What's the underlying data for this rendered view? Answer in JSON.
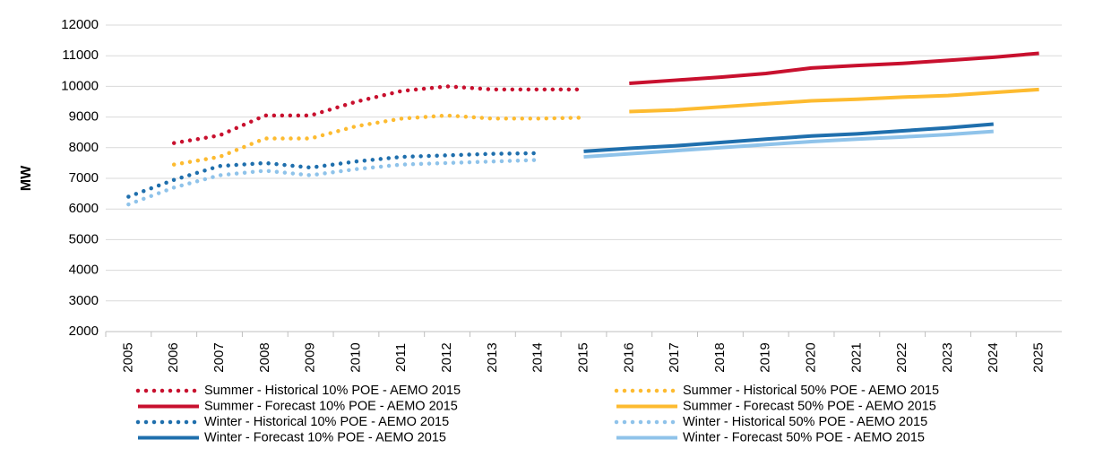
{
  "chart_data": {
    "type": "line",
    "y_label": "MW",
    "categories": [
      "2005",
      "2006",
      "2007",
      "2008",
      "2009",
      "2010",
      "2011",
      "2012",
      "2013",
      "2014",
      "2015",
      "2016",
      "2017",
      "2018",
      "2019",
      "2020",
      "2021",
      "2022",
      "2023",
      "2024",
      "2025"
    ],
    "ylim": [
      2000,
      12000
    ],
    "yticks": [
      2000,
      3000,
      4000,
      5000,
      6000,
      7000,
      8000,
      9000,
      10000,
      11000,
      12000
    ],
    "grid": true,
    "legend": "bottom",
    "series": [
      {
        "name": "Summer - Historical 10% POE - AEMO 2015",
        "color": "#c8102e",
        "style": "dotted",
        "values": [
          null,
          8150,
          8400,
          9050,
          9050,
          9500,
          9850,
          10000,
          9900,
          9900,
          9900,
          null,
          null,
          null,
          null,
          null,
          null,
          null,
          null,
          null,
          null
        ]
      },
      {
        "name": "Summer - Historical 50% POE - AEMO 2015",
        "color": "#fdbb30",
        "style": "dotted",
        "values": [
          null,
          7450,
          7700,
          8300,
          8300,
          8700,
          8950,
          9050,
          8950,
          8950,
          8980,
          null,
          null,
          null,
          null,
          null,
          null,
          null,
          null,
          null,
          null
        ]
      },
      {
        "name": "Summer - Forecast 10% POE - AEMO 2015",
        "color": "#c8102e",
        "style": "solid",
        "values": [
          null,
          null,
          null,
          null,
          null,
          null,
          null,
          null,
          null,
          null,
          null,
          10100,
          10200,
          10300,
          10420,
          10600,
          10680,
          10750,
          10850,
          10950,
          11080
        ]
      },
      {
        "name": "Summer - Forecast 50% POE - AEMO 2015",
        "color": "#fdbb30",
        "style": "solid",
        "values": [
          null,
          null,
          null,
          null,
          null,
          null,
          null,
          null,
          null,
          null,
          null,
          9180,
          9230,
          9330,
          9430,
          9530,
          9580,
          9650,
          9700,
          9800,
          9900
        ]
      },
      {
        "name": "Winter - Historical 10% POE - AEMO 2015",
        "color": "#1f6fad",
        "style": "dotted",
        "values": [
          6400,
          6950,
          7400,
          7500,
          7350,
          7550,
          7700,
          7750,
          7800,
          7820,
          null,
          null,
          null,
          null,
          null,
          null,
          null,
          null,
          null,
          null,
          null
        ]
      },
      {
        "name": "Winter - Historical 50% POE - AEMO 2015",
        "color": "#8fc3ea",
        "style": "dotted",
        "values": [
          6150,
          6700,
          7100,
          7250,
          7100,
          7300,
          7450,
          7500,
          7550,
          7600,
          null,
          null,
          null,
          null,
          null,
          null,
          null,
          null,
          null,
          null,
          null
        ]
      },
      {
        "name": "Winter - Forecast 10% POE - AEMO 2015",
        "color": "#1f6fad",
        "style": "solid",
        "values": [
          null,
          null,
          null,
          null,
          null,
          null,
          null,
          null,
          null,
          null,
          7880,
          7980,
          8060,
          8170,
          8280,
          8380,
          8450,
          8550,
          8650,
          8770,
          null
        ]
      },
      {
        "name": "Winter - Forecast 50% POE - AEMO 2015",
        "color": "#8fc3ea",
        "style": "solid",
        "values": [
          null,
          null,
          null,
          null,
          null,
          null,
          null,
          null,
          null,
          null,
          7700,
          7800,
          7900,
          8000,
          8100,
          8200,
          8280,
          8350,
          8430,
          8530,
          null
        ]
      }
    ]
  }
}
